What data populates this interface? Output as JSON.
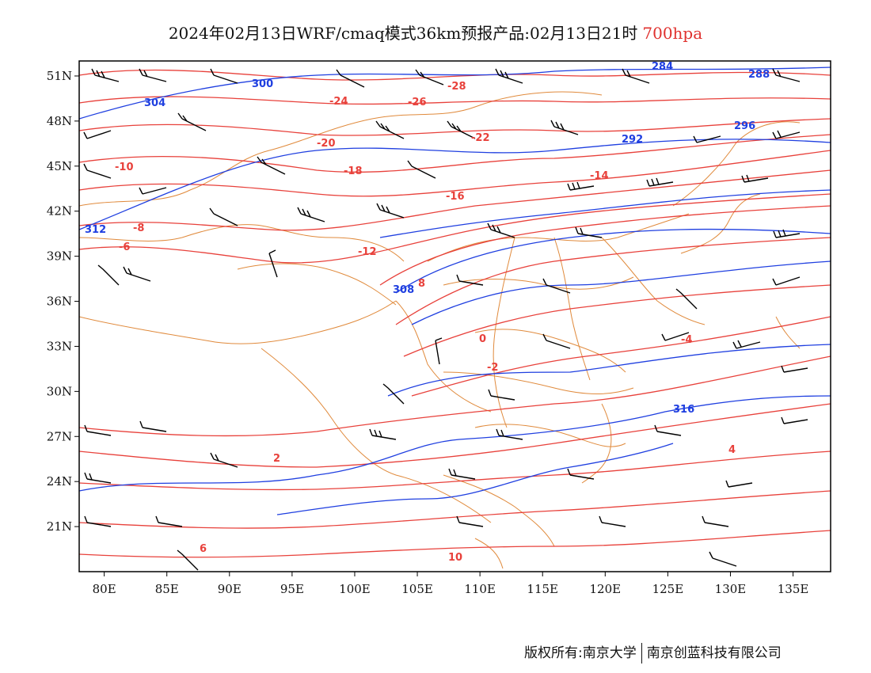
{
  "title": {
    "main": "2024年02月13日WRF/cmaq模式36km预报产品:02月13日21时",
    "level": "700hpa"
  },
  "axes": {
    "lat_labels": [
      "51N",
      "48N",
      "45N",
      "42N",
      "39N",
      "36N",
      "33N",
      "30N",
      "27N",
      "24N",
      "21N"
    ],
    "lon_labels": [
      "80E",
      "85E",
      "90E",
      "95E",
      "100E",
      "105E",
      "110E",
      "115E",
      "120E",
      "125E",
      "130E",
      "135E"
    ]
  },
  "map": {
    "extent": {
      "lon": [
        78,
        138
      ],
      "lat": [
        18,
        52
      ]
    },
    "temp_contour_labels": [
      "-28",
      "-26",
      "-24",
      "-22",
      "-20",
      "-18",
      "-16",
      "-14",
      "-12",
      "-10",
      "-8",
      "-6",
      "-4",
      "-2",
      "0",
      "2",
      "4",
      "6",
      "8",
      "10"
    ],
    "height_contour_labels": [
      "284",
      "288",
      "292",
      "296",
      "300",
      "304",
      "308",
      "312",
      "316"
    ],
    "colors": {
      "temperature": "#e8413b",
      "height": "#1f3fe0",
      "boundary": "#e08a3c",
      "wind": "#000000"
    }
  },
  "footer": {
    "copyright": "版权所有:南京大学",
    "company": "南京创蓝科技有限公司"
  }
}
